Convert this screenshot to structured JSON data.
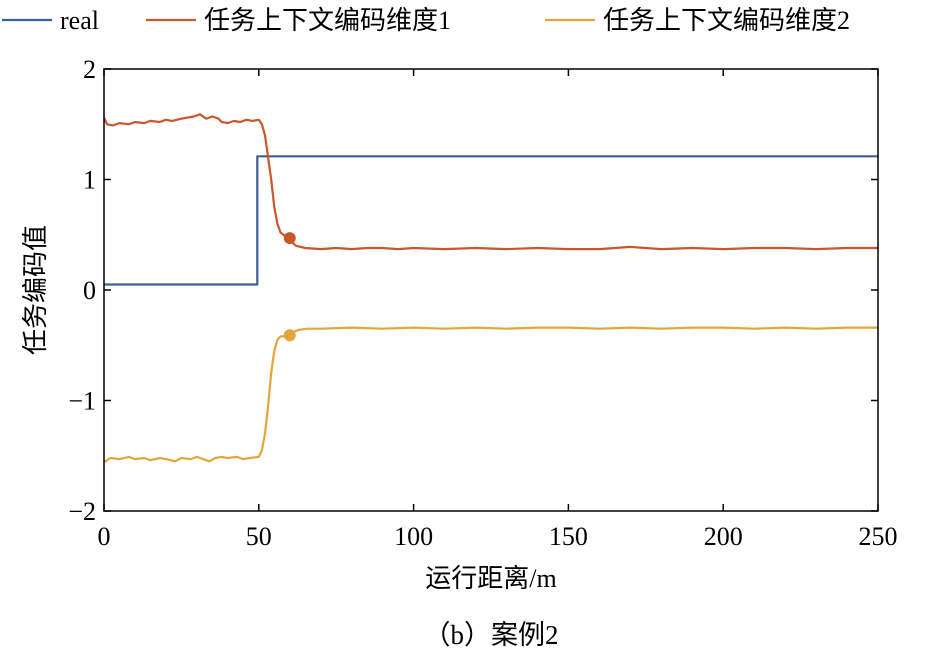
{
  "chart_data": {
    "type": "line",
    "caption": "（b）案例2",
    "xlabel": "运行距离/m",
    "ylabel": "任务编码值",
    "xlim": [
      0,
      250
    ],
    "ylim": [
      -2,
      2
    ],
    "xticks": [
      0,
      50,
      100,
      150,
      200,
      250
    ],
    "yticks": [
      -2,
      -1,
      0,
      1,
      2
    ],
    "xtick_labels": [
      "0",
      "50",
      "100",
      "150",
      "200",
      "250"
    ],
    "ytick_labels": [
      "−2",
      "−1",
      "0",
      "1",
      "2"
    ],
    "grid": false,
    "legend_position": "top",
    "series": [
      {
        "name": "real",
        "color": "#3b5f96",
        "points": [
          [
            0,
            0.05
          ],
          [
            49.5,
            0.05
          ],
          [
            49.5,
            1.21
          ],
          [
            250,
            1.21
          ]
        ]
      },
      {
        "name": "任务上下文编码维度1",
        "color": "#c9572a",
        "points": [
          [
            0,
            1.56
          ],
          [
            1,
            1.5
          ],
          [
            3,
            1.49
          ],
          [
            5,
            1.51
          ],
          [
            8,
            1.5
          ],
          [
            10,
            1.52
          ],
          [
            13,
            1.51
          ],
          [
            15,
            1.53
          ],
          [
            18,
            1.52
          ],
          [
            20,
            1.54
          ],
          [
            22,
            1.53
          ],
          [
            25,
            1.55
          ],
          [
            27,
            1.56
          ],
          [
            29,
            1.57
          ],
          [
            31,
            1.59
          ],
          [
            33,
            1.55
          ],
          [
            35,
            1.57
          ],
          [
            37,
            1.55
          ],
          [
            38,
            1.52
          ],
          [
            40,
            1.51
          ],
          [
            42,
            1.53
          ],
          [
            44,
            1.52
          ],
          [
            46,
            1.54
          ],
          [
            48,
            1.53
          ],
          [
            50,
            1.54
          ],
          [
            51,
            1.5
          ],
          [
            52,
            1.4
          ],
          [
            53,
            1.2
          ],
          [
            54,
            1.0
          ],
          [
            55,
            0.75
          ],
          [
            56,
            0.6
          ],
          [
            57,
            0.52
          ],
          [
            58,
            0.5
          ],
          [
            60,
            0.45
          ],
          [
            62,
            0.4
          ],
          [
            65,
            0.38
          ],
          [
            70,
            0.37
          ],
          [
            75,
            0.38
          ],
          [
            80,
            0.37
          ],
          [
            85,
            0.38
          ],
          [
            90,
            0.38
          ],
          [
            95,
            0.37
          ],
          [
            100,
            0.38
          ],
          [
            110,
            0.37
          ],
          [
            120,
            0.38
          ],
          [
            130,
            0.37
          ],
          [
            140,
            0.38
          ],
          [
            150,
            0.37
          ],
          [
            160,
            0.37
          ],
          [
            170,
            0.39
          ],
          [
            180,
            0.37
          ],
          [
            190,
            0.38
          ],
          [
            200,
            0.37
          ],
          [
            210,
            0.38
          ],
          [
            220,
            0.38
          ],
          [
            230,
            0.37
          ],
          [
            240,
            0.38
          ],
          [
            250,
            0.38
          ]
        ],
        "marker": [
          60,
          0.47
        ]
      },
      {
        "name": "任务上下文编码维度2",
        "color": "#e6a53c",
        "points": [
          [
            0,
            -1.56
          ],
          [
            2,
            -1.52
          ],
          [
            5,
            -1.53
          ],
          [
            8,
            -1.51
          ],
          [
            10,
            -1.53
          ],
          [
            13,
            -1.52
          ],
          [
            15,
            -1.54
          ],
          [
            18,
            -1.52
          ],
          [
            20,
            -1.53
          ],
          [
            23,
            -1.55
          ],
          [
            25,
            -1.52
          ],
          [
            28,
            -1.53
          ],
          [
            30,
            -1.51
          ],
          [
            32,
            -1.53
          ],
          [
            34,
            -1.55
          ],
          [
            36,
            -1.52
          ],
          [
            38,
            -1.51
          ],
          [
            40,
            -1.52
          ],
          [
            43,
            -1.51
          ],
          [
            45,
            -1.53
          ],
          [
            47,
            -1.52
          ],
          [
            50,
            -1.51
          ],
          [
            51,
            -1.45
          ],
          [
            52,
            -1.3
          ],
          [
            53,
            -1.05
          ],
          [
            54,
            -0.75
          ],
          [
            55,
            -0.55
          ],
          [
            56,
            -0.45
          ],
          [
            57,
            -0.42
          ],
          [
            59,
            -0.42
          ],
          [
            61,
            -0.38
          ],
          [
            63,
            -0.36
          ],
          [
            66,
            -0.35
          ],
          [
            70,
            -0.35
          ],
          [
            80,
            -0.34
          ],
          [
            90,
            -0.35
          ],
          [
            100,
            -0.34
          ],
          [
            110,
            -0.35
          ],
          [
            120,
            -0.34
          ],
          [
            130,
            -0.35
          ],
          [
            140,
            -0.34
          ],
          [
            150,
            -0.34
          ],
          [
            160,
            -0.35
          ],
          [
            170,
            -0.34
          ],
          [
            180,
            -0.35
          ],
          [
            190,
            -0.34
          ],
          [
            200,
            -0.34
          ],
          [
            210,
            -0.35
          ],
          [
            220,
            -0.34
          ],
          [
            230,
            -0.35
          ],
          [
            240,
            -0.34
          ],
          [
            250,
            -0.34
          ]
        ],
        "marker": [
          60,
          -0.41
        ]
      }
    ]
  }
}
